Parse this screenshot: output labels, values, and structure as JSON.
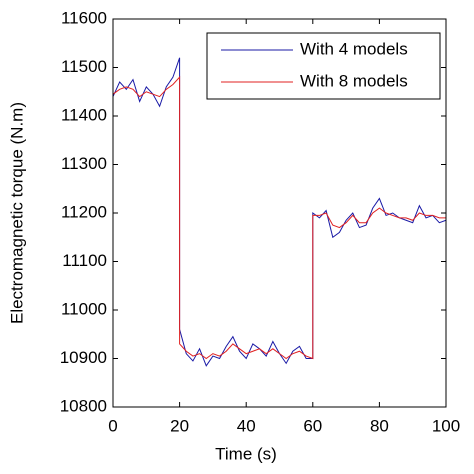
{
  "chart_data": {
    "type": "line",
    "x_label": "Time (s)",
    "y_label": "Electromagnetic torque (N.m)",
    "x": [
      0,
      2,
      4,
      6,
      8,
      10,
      12,
      14,
      16,
      18,
      20,
      20,
      22,
      24,
      26,
      28,
      30,
      32,
      34,
      36,
      38,
      40,
      42,
      44,
      46,
      48,
      50,
      52,
      54,
      56,
      58,
      60,
      60,
      62,
      64,
      66,
      68,
      70,
      72,
      74,
      76,
      78,
      80,
      82,
      84,
      86,
      88,
      90,
      92,
      94,
      96,
      98,
      100
    ],
    "series": [
      {
        "name": "With 4 models",
        "color": "#1a1aa6",
        "values": [
          11440,
          11470,
          11455,
          11475,
          11430,
          11460,
          11445,
          11420,
          11460,
          11480,
          11520,
          10960,
          10910,
          10895,
          10920,
          10885,
          10905,
          10900,
          10925,
          10945,
          10915,
          10900,
          10930,
          10920,
          10905,
          10935,
          10910,
          10890,
          10915,
          10925,
          10900,
          10900,
          11200,
          11190,
          11205,
          11150,
          11160,
          11185,
          11200,
          11170,
          11175,
          11210,
          11230,
          11195,
          11200,
          11190,
          11185,
          11180,
          11215,
          11190,
          11195,
          11180,
          11185
        ]
      },
      {
        "name": "With 8 models",
        "color": "#e02020",
        "values": [
          11445,
          11455,
          11460,
          11455,
          11440,
          11450,
          11445,
          11440,
          11455,
          11465,
          11480,
          10930,
          10915,
          10905,
          10910,
          10900,
          10910,
          10905,
          10915,
          10930,
          10920,
          10910,
          10915,
          10920,
          10910,
          10920,
          10910,
          10900,
          10910,
          10915,
          10905,
          10900,
          11195,
          11195,
          11200,
          11175,
          11170,
          11180,
          11195,
          11180,
          11180,
          11200,
          11210,
          11200,
          11195,
          11190,
          11190,
          11185,
          11200,
          11195,
          11195,
          11190,
          11190
        ]
      }
    ],
    "xlim": [
      0,
      100
    ],
    "xticks": [
      0,
      20,
      40,
      60,
      80,
      100
    ],
    "ylim": [
      10800,
      11600
    ],
    "yticks": [
      10800,
      10900,
      11000,
      11100,
      11200,
      11300,
      11400,
      11500,
      11600
    ],
    "legend": "upper right"
  }
}
